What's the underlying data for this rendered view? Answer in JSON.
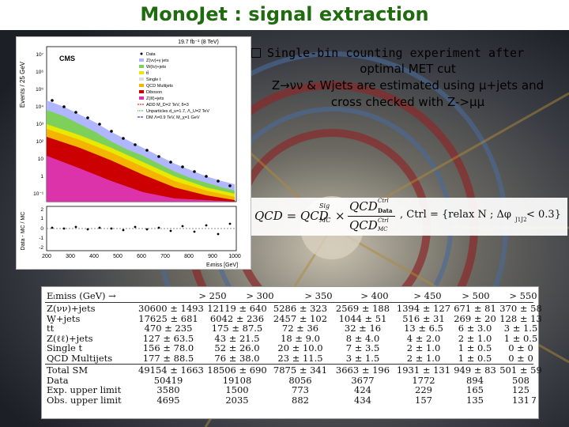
{
  "slide": {
    "title": "MonoJet : signal extraction",
    "bullet": "Single-bin counting experiment after",
    "para_lines": [
      "optimal MET cut",
      "Z→νν & Wjets are estimated using μ+jets and",
      "cross checked with Z->μμ"
    ],
    "page_number": "7"
  },
  "plot": {
    "lumi": "19.7 fb⁻¹ (8 TeV)",
    "experiment": "CMS",
    "ylabel": "Events / 25 GeV",
    "ratio_ylabel": "Data - MC / MC",
    "xlabel": "Eₗmiss [GeV]",
    "ytick_labels": [
      "10⁷",
      "10⁶",
      "10⁵",
      "10⁴",
      "10³",
      "10²",
      "10",
      "1",
      "10⁻¹"
    ],
    "ratio_ticks": [
      "2",
      "1",
      "0",
      "-1",
      "-2"
    ],
    "xtick_labels": [
      "200",
      "300",
      "400",
      "500",
      "600",
      "700",
      "800",
      "900",
      "1000"
    ],
    "legend": [
      "Data",
      "Z(νν)+γ jets",
      "W(ℓν)+jets",
      "tt̄",
      "Single t",
      "QCD Multijets",
      "Diboson",
      "Z(ℓℓ)+jets",
      "ADD M_D=2 TeV, δ=3",
      "Unparticles d_u=1.7, Λ_U=2 TeV",
      "DM Λ=0.9 TeV, M_χ=1 GeV"
    ],
    "colors": {
      "znunu": "#b0b7ff",
      "wjets": "#7dd15a",
      "ttbar": "#e8e800",
      "singlet": "#dcdcdc",
      "qcd": "#f4b400",
      "diboson": "#cc0000",
      "zll": "#dd33aa",
      "data": "#000000"
    }
  },
  "formula": {
    "text_left": "QCD = QCD",
    "mc_label": "MC",
    "sig_label": "Sig",
    "times": "×",
    "num": "QCD",
    "num_sup": "Ctrl",
    "num_sub": "Data",
    "den": "QCD",
    "den_sup": "Ctrl",
    "den_sub": "MC",
    "ctrl_text": ", Ctrl = {relax N ; Δφ",
    "ctrl_sub": "J1J2",
    "ctrl_end": " < 0.3}"
  },
  "table": {
    "header": [
      "Eₗmiss (GeV) →",
      "> 250",
      "> 300",
      "> 350",
      "> 400",
      "> 450",
      "> 500",
      "> 550"
    ],
    "rows": [
      {
        "label": "Z(νν)+jets",
        "cells": [
          "30600 ± 1493",
          "12119 ± 640",
          "5286 ± 323",
          "2569 ± 188",
          "1394 ± 127",
          "671 ± 81",
          "370 ± 58"
        ]
      },
      {
        "label": "W+jets",
        "cells": [
          "17625 ± 681",
          "6042 ± 236",
          "2457 ± 102",
          "1044 ± 51",
          "516 ± 31",
          "269 ± 20",
          "128 ± 13"
        ]
      },
      {
        "label": "tt̄",
        "cells": [
          "470 ± 235",
          "175 ± 87.5",
          "72 ± 36",
          "32 ± 16",
          "13 ± 6.5",
          "6 ± 3.0",
          "3 ± 1.5"
        ]
      },
      {
        "label": "Z(ℓℓ)+jets",
        "cells": [
          "127 ± 63.5",
          "43 ± 21.5",
          "18 ± 9.0",
          "8 ± 4.0",
          "4 ± 2.0",
          "2 ± 1.0",
          "1 ± 0.5"
        ]
      },
      {
        "label": "Single t",
        "cells": [
          "156 ± 78.0",
          "52 ± 26.0",
          "20 ± 10.0",
          "7 ± 3.5",
          "2 ± 1.0",
          "1 ± 0.5",
          "0 ± 0"
        ]
      },
      {
        "label": "QCD Multijets",
        "cells": [
          "177 ± 88.5",
          "76 ± 38.0",
          "23 ± 11.5",
          "3 ± 1.5",
          "2 ± 1.0",
          "1 ± 0.5",
          "0 ± 0"
        ]
      },
      {
        "label": "Total SM",
        "cells": [
          "49154 ± 1663",
          "18506 ± 690",
          "7875 ± 341",
          "3663 ± 196",
          "1931 ± 131",
          "949 ± 83",
          "501 ± 59"
        ]
      },
      {
        "label": "Data",
        "cells": [
          "50419",
          "19108",
          "8056",
          "3677",
          "1772",
          "894",
          "508"
        ]
      },
      {
        "label": "Exp. upper limit",
        "cells": [
          "3580",
          "1500",
          "773",
          "424",
          "229",
          "165",
          "125"
        ]
      },
      {
        "label": "Obs. upper limit",
        "cells": [
          "4695",
          "2035",
          "882",
          "434",
          "157",
          "135",
          "131"
        ]
      }
    ]
  }
}
